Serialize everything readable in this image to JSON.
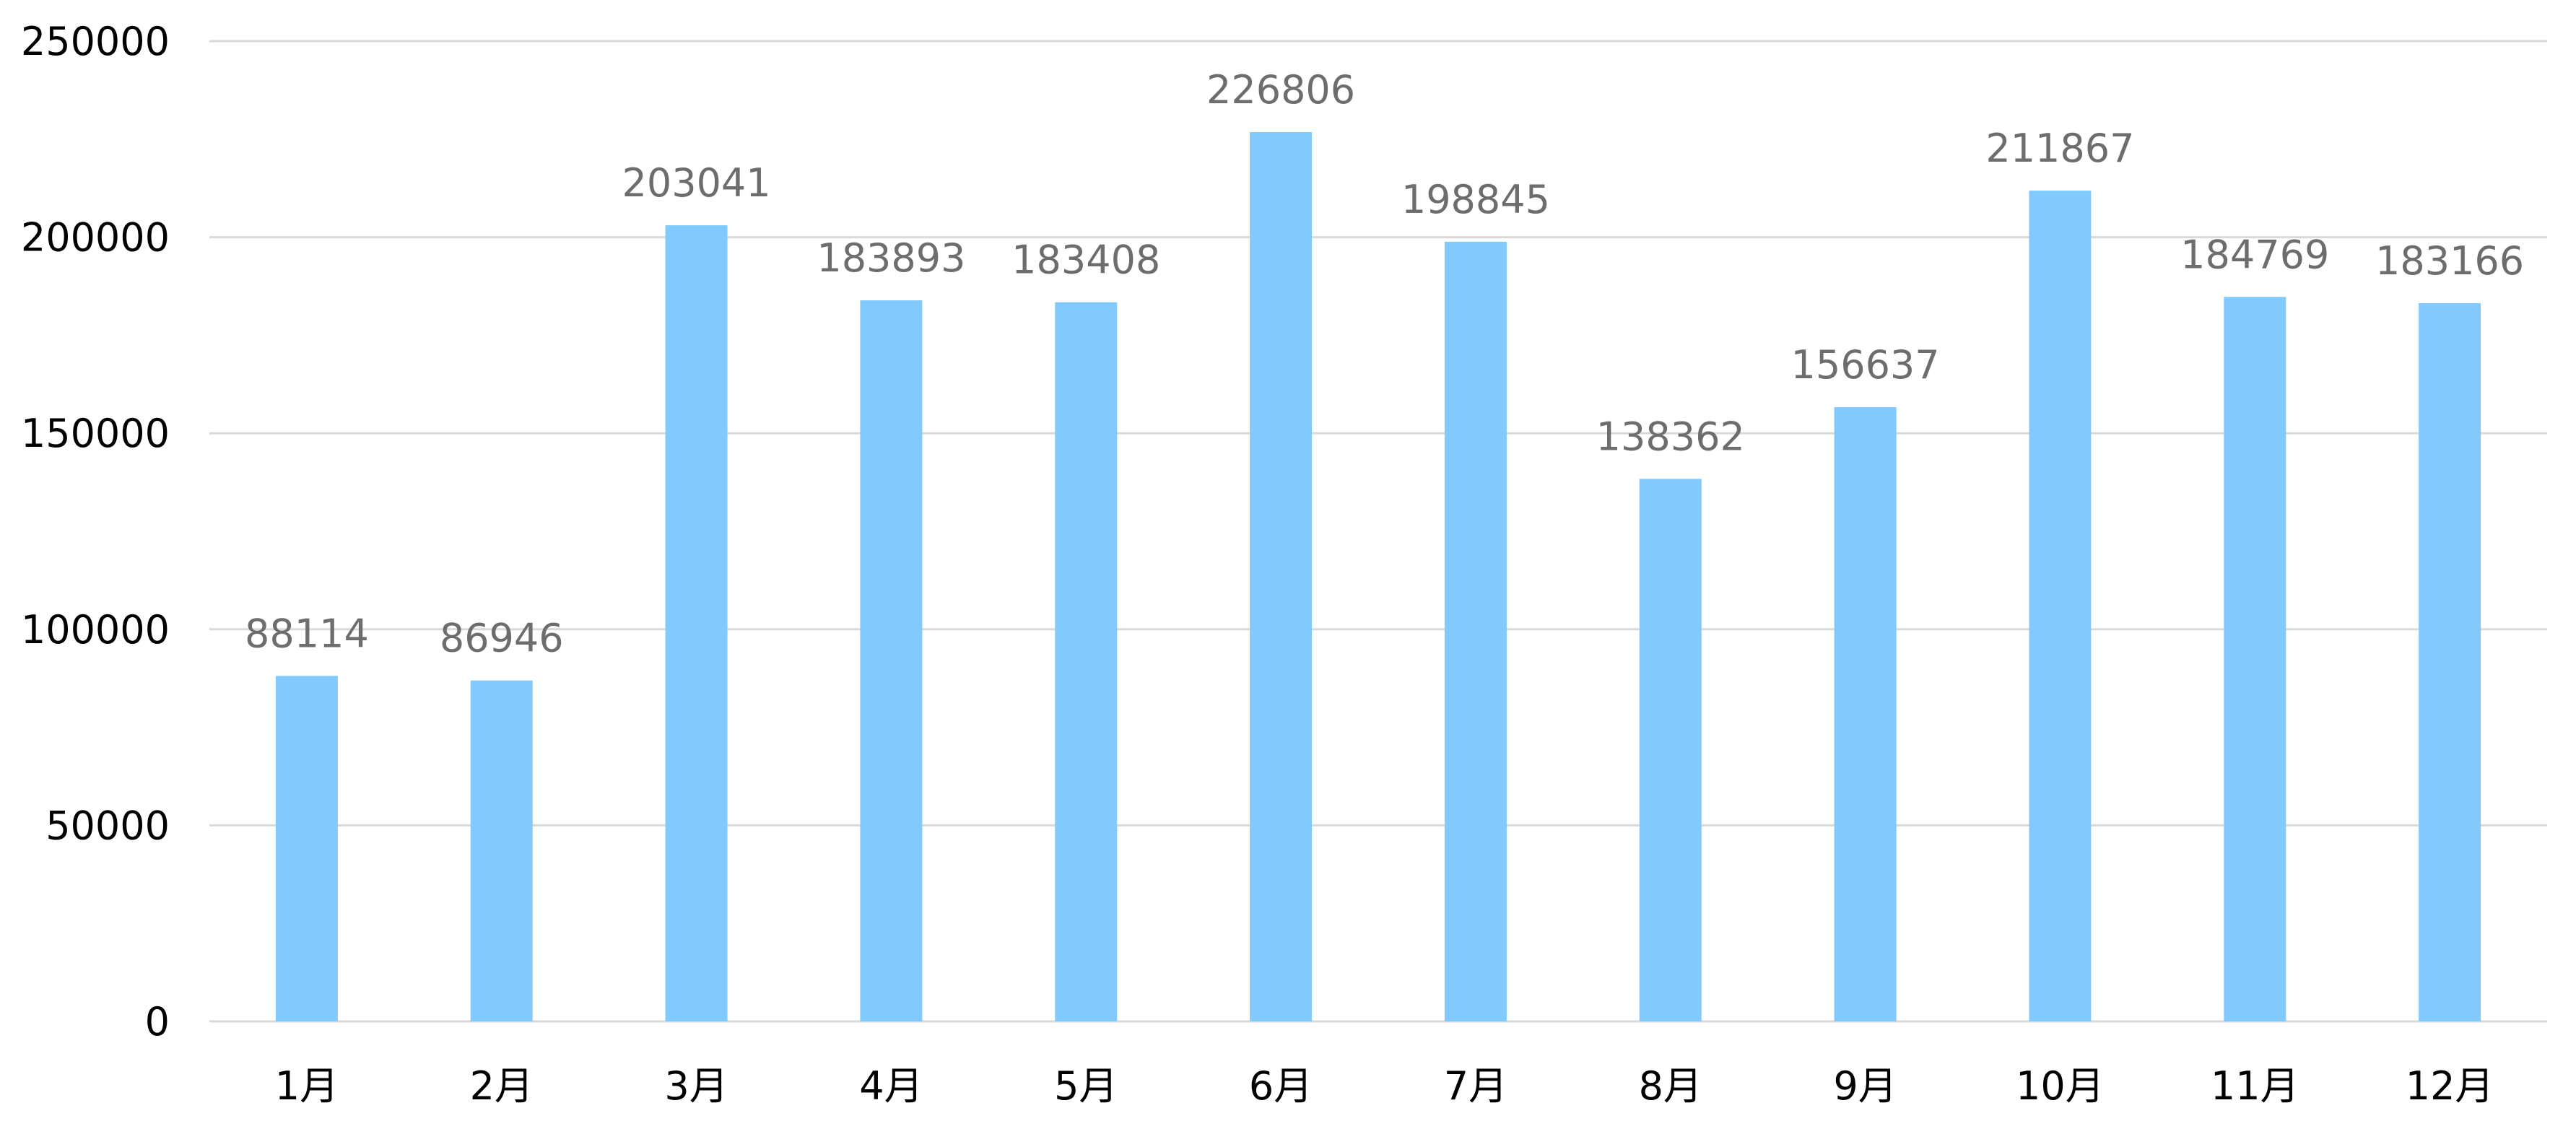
{
  "chart_data": {
    "type": "bar",
    "title": "",
    "xlabel": "",
    "ylabel": "",
    "categories": [
      "1月",
      "2月",
      "3月",
      "4月",
      "5月",
      "6月",
      "7月",
      "8月",
      "9月",
      "10月",
      "11月",
      "12月"
    ],
    "values": [
      88114,
      86946,
      203041,
      183893,
      183408,
      226806,
      198845,
      138362,
      156637,
      211867,
      184769,
      183166
    ],
    "ylim": [
      0,
      250000
    ],
    "yticks": [
      0,
      50000,
      100000,
      150000,
      200000,
      250000
    ],
    "grid": true,
    "legend": "none",
    "bar_color": "#82cafd",
    "data_label_color": "#6d6d6d"
  }
}
